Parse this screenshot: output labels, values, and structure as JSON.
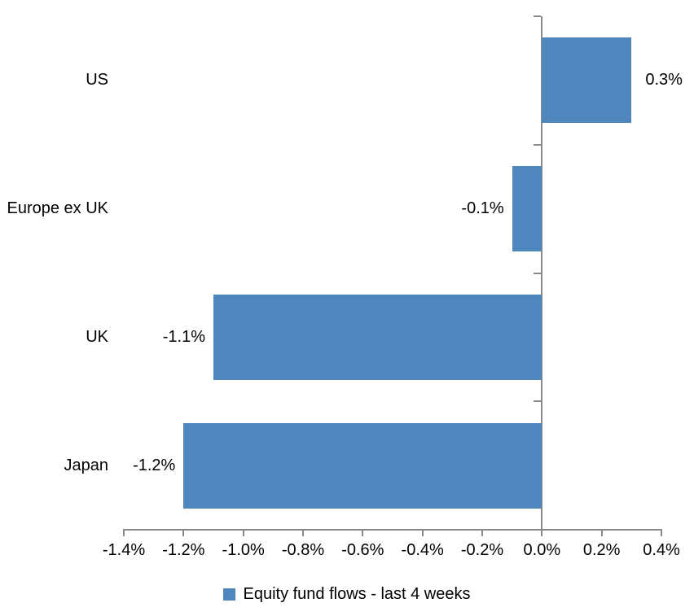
{
  "chart_data": {
    "type": "bar",
    "orientation": "horizontal",
    "title": "",
    "categories": [
      "US",
      "Europe ex UK",
      "UK",
      "Japan"
    ],
    "values": [
      0.3,
      -0.1,
      -1.1,
      -1.2
    ],
    "value_labels": [
      "0.3%",
      "-0.1%",
      "-1.1%",
      "-1.2%"
    ],
    "x_axis": {
      "min": -1.4,
      "max": 0.4,
      "tick_labels": [
        "-1.4%",
        "-1.2%",
        "-1.0%",
        "-0.8%",
        "-0.6%",
        "-0.4%",
        "-0.2%",
        "0.0%",
        "0.2%",
        "0.4%"
      ]
    },
    "grid": false,
    "legend": {
      "position": "bottom",
      "label": "Equity fund flows - last 4 weeks"
    },
    "colors": {
      "bar": "#4E86BD",
      "axis": "#898989",
      "text": "#000000",
      "background": "#FFFFFF"
    }
  }
}
